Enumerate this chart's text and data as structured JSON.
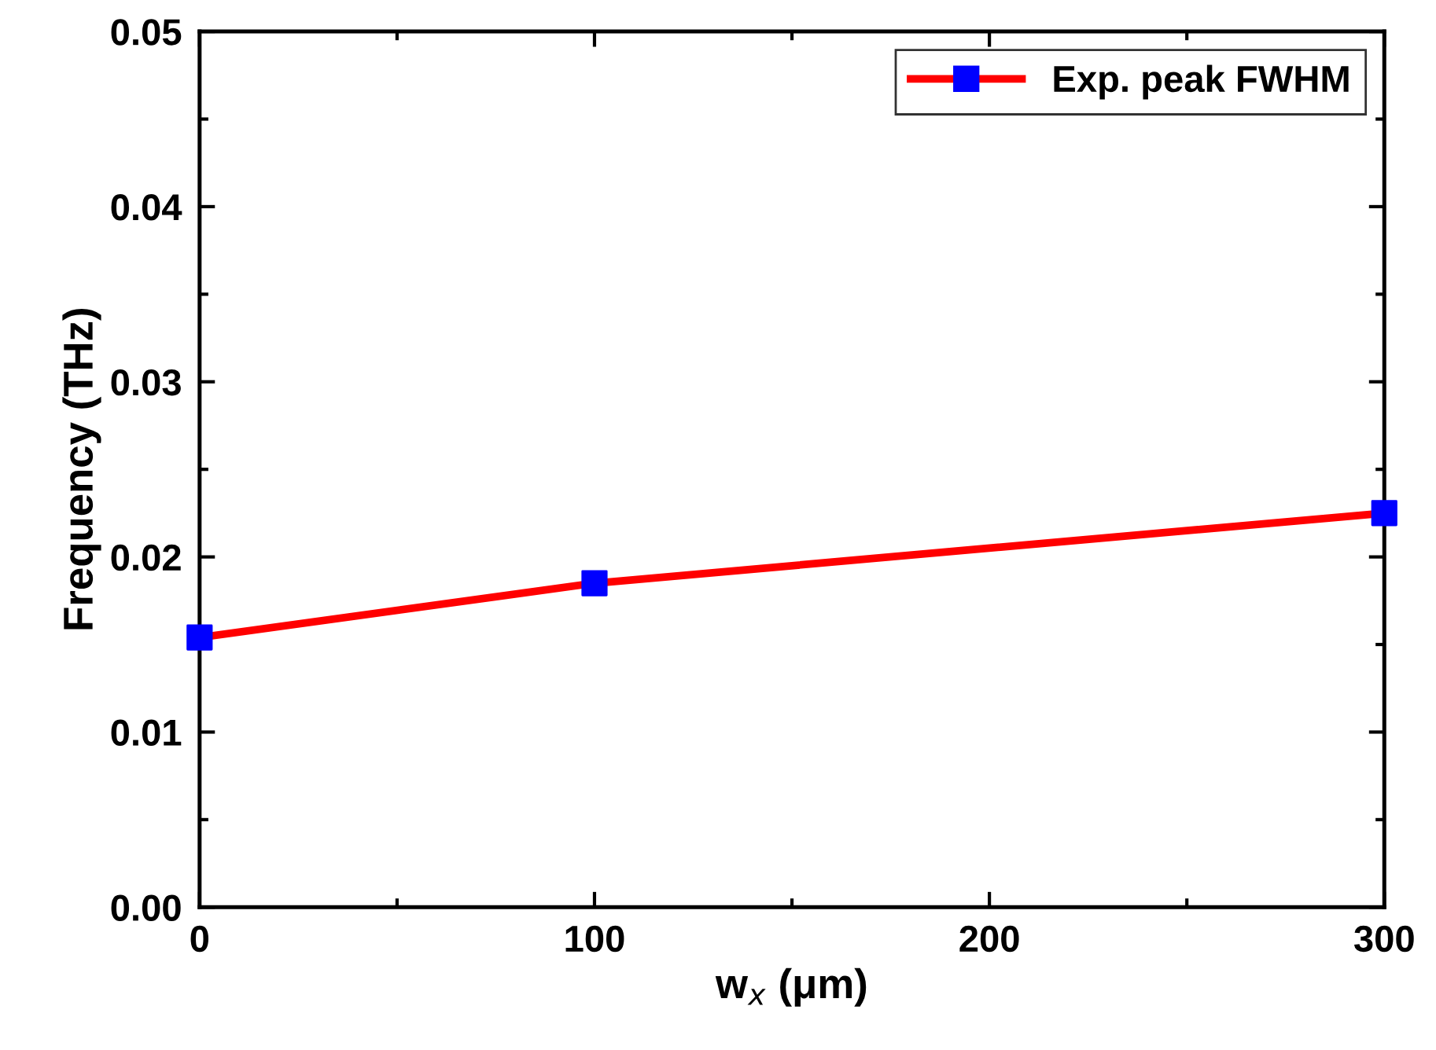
{
  "chart_data": {
    "type": "line",
    "xlabel": "w$_{x}$ (μm)",
    "ylabel": "Frequency (THz)",
    "x": [
      0,
      100,
      300
    ],
    "series": [
      {
        "name": "Exp. peak FWHM",
        "color": "#ff0000",
        "colors": [
          "#0000ff",
          "#0000ff",
          "#0000ff"
        ],
        "values": [
          0.0154,
          0.0185,
          0.0225
        ]
      }
    ],
    "xlim": [
      0,
      300
    ],
    "xticks": [
      0,
      100,
      200,
      300
    ],
    "ylim": [
      0,
      0.05
    ],
    "yticks": [
      {
        "value": 0,
        "label": "0.00"
      },
      {
        "value": 0.01,
        "label": "0.01"
      },
      {
        "value": 0.02,
        "label": "0.02"
      },
      {
        "value": 0.03,
        "label": "0.03"
      },
      {
        "value": 0.04,
        "label": "0.04"
      },
      {
        "value": 0.05,
        "label": "0.05"
      }
    ],
    "marker": "square",
    "line_style": "solid",
    "legend": "top right",
    "grid": false
  }
}
